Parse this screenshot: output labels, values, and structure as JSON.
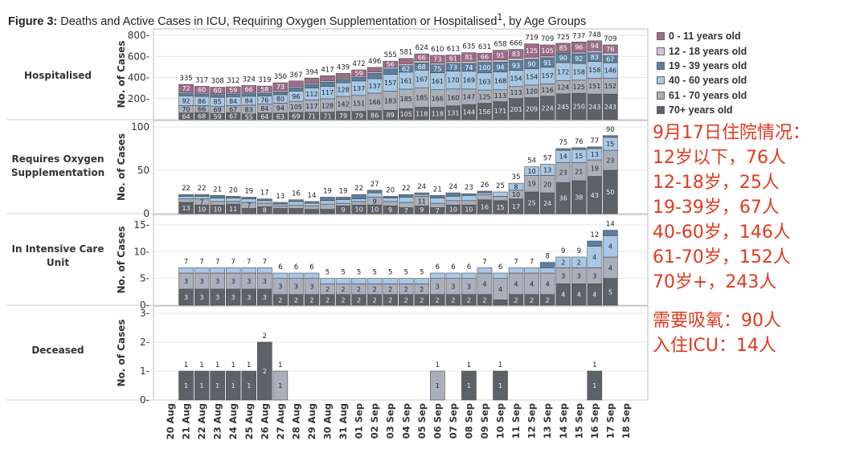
{
  "title_bold": "Figure 3:",
  "title_text": " Deaths and Active Cases in ICU, Requiring Oxygen Supplementation or Hospitalised",
  "title_sup": "1",
  "title_tail": ", by Age Groups",
  "legend": [
    {
      "label": "0 - 11 years old",
      "color": "#9e6b8a"
    },
    {
      "label": "12 - 18 years old",
      "color": "#cfc6da"
    },
    {
      "label": "19 - 39 years old",
      "color": "#5b7da0"
    },
    {
      "label": "40 - 60 years old",
      "color": "#a8c8e6"
    },
    {
      "label": "61 - 70 years old",
      "color": "#a9afbb"
    },
    {
      "label": "70+ years old",
      "color": "#5d6168"
    }
  ],
  "annotations": {
    "block1": [
      "9月17日住院情况：",
      "12岁以下，76人",
      "12-18岁，25人",
      "19-39岁，67人",
      "40-60岁，146人",
      "61-70岁，152人",
      "70岁+，243人"
    ],
    "block2": [
      "需要吸氧：90人",
      "入住ICU：14人"
    ]
  },
  "chart_data": {
    "type": "bar",
    "stacked": true,
    "x_label": "",
    "categories": [
      "20 Aug",
      "21 Aug",
      "22 Aug",
      "23 Aug",
      "24 Aug",
      "25 Aug",
      "26 Aug",
      "27 Aug",
      "28 Aug",
      "29 Aug",
      "30 Aug",
      "31 Aug",
      "01 Sep",
      "02 Sep",
      "03 Sep",
      "04 Sep",
      "05 Sep",
      "06 Sep",
      "07 Sep",
      "08 Sep",
      "09 Sep",
      "10 Sep",
      "11 Sep",
      "12 Sep",
      "13 Sep",
      "14 Sep",
      "15 Sep",
      "16 Sep",
      "17 Sep",
      "18 Sep"
    ],
    "series_names": [
      "70+ years old",
      "61 - 70 years old",
      "40 - 60 years old",
      "19 - 39 years old",
      "12 - 18 years old",
      "0 - 11 years old"
    ],
    "panels": [
      {
        "name": "Hospitalised",
        "ylabel": "No. of Cases",
        "ylim": [
          0,
          800
        ],
        "yticks": [
          200,
          400,
          600,
          800
        ],
        "tick_suffix": "-",
        "totals": [
          null,
          335,
          317,
          308,
          312,
          324,
          319,
          350,
          367,
          394,
          417,
          439,
          472,
          496,
          555,
          581,
          624,
          610,
          613,
          635,
          631,
          658,
          666,
          719,
          709,
          725,
          737,
          748,
          709,
          null
        ],
        "series": [
          {
            "name": "70+ years old",
            "values": [
              null,
              64,
              68,
              59,
              67,
              55,
              64,
              63,
              69,
              71,
              71,
              79,
              79,
              86,
              89,
              105,
              118,
              118,
              131,
              144,
              156,
              171,
              201,
              209,
              224,
              245,
              250,
              243,
              243,
              null
            ]
          },
          {
            "name": "61 - 70 years old",
            "values": [
              null,
              70,
              66,
              69,
              67,
              83,
              84,
              94,
              105,
              117,
              128,
              142,
              151,
              166,
              183,
              185,
              185,
              166,
              160,
              147,
              125,
              113,
              113,
              120,
              116,
              124,
              125,
              151,
              152,
              null
            ]
          },
          {
            "name": "40 - 60 years old",
            "values": [
              null,
              92,
              86,
              85,
              84,
              84,
              76,
              80,
              96,
              112,
              117,
              128,
              137,
              137,
              157,
              161,
              167,
              161,
              170,
              169,
              163,
              168,
              154,
              154,
              157,
              172,
              158,
              158,
              146,
              null
            ]
          },
          {
            "name": "19 - 39 years old",
            "values": [
              null,
              25,
              25,
              25,
              25,
              25,
              25,
              27,
              34,
              34,
              40,
              33,
              33,
              50,
              53,
              62,
              68,
              75,
              73,
              74,
              100,
              94,
              93,
              90,
              91,
              90,
              92,
              83,
              67,
              null
            ]
          },
          {
            "name": "12 - 18 years old",
            "values": [
              null,
              12,
              12,
              10,
              10,
              11,
              12,
              13,
              13,
              12,
              12,
              12,
              13,
              14,
              17,
              18,
              20,
              17,
              18,
              20,
              21,
              21,
              22,
              21,
              16,
              9,
              16,
              19,
              25,
              null
            ]
          },
          {
            "name": "0 - 11 years old",
            "values": [
              null,
              72,
              60,
              60,
              59,
              66,
              58,
              73,
              50,
              48,
              49,
              45,
              59,
              43,
              56,
              50,
              66,
              73,
              61,
              81,
              66,
              91,
              83,
              125,
              105,
              85,
              96,
              94,
              76,
              null
            ]
          }
        ]
      },
      {
        "name": "Requires Oxygen Supplementation",
        "ylabel": "No. of Cases",
        "ylim": [
          0,
          100
        ],
        "yticks": [
          0,
          50,
          100
        ],
        "tick_suffix": "",
        "totals": [
          null,
          22,
          22,
          21,
          20,
          19,
          17,
          13,
          16,
          14,
          19,
          19,
          22,
          27,
          20,
          22,
          24,
          21,
          24,
          23,
          26,
          25,
          35,
          54,
          57,
          75,
          76,
          77,
          90,
          null
        ],
        "series": [
          {
            "name": "70+ years old",
            "values": [
              null,
              13,
              10,
              10,
              11,
              6,
              8,
              6,
              6,
              5,
              5,
              9,
              10,
              10,
              9,
              7,
              9,
              7,
              10,
              10,
              16,
              15,
              17,
              25,
              24,
              36,
              38,
              43,
              50,
              null
            ]
          },
          {
            "name": "61 - 70 years old",
            "values": [
              null,
              4,
              7,
              4,
              3,
              7,
              4,
              3,
              4,
              4,
              6,
              3,
              4,
              9,
              5,
              6,
              11,
              5,
              5,
              5,
              6,
              5,
              10,
              19,
              20,
              23,
              21,
              19,
              23,
              null
            ]
          },
          {
            "name": "40 - 60 years old",
            "values": [
              null,
              3,
              3,
              4,
              4,
              4,
              3,
              2,
              4,
              3,
              4,
              4,
              3,
              5,
              4,
              6,
              2,
              6,
              5,
              6,
              2,
              5,
              8,
              10,
              13,
              14,
              15,
              13,
              15,
              null
            ]
          },
          {
            "name": "19 - 39 years old",
            "values": [
              null,
              2,
              2,
              3,
              2,
              2,
              2,
              2,
              2,
              2,
              4,
              3,
              5,
              3,
              2,
              3,
              2,
              3,
              4,
              2,
              2,
              0,
              0,
              0,
              0,
              2,
              2,
              2,
              2,
              null
            ]
          },
          {
            "name": "12 - 18 years old",
            "values": [
              null,
              0,
              0,
              0,
              0,
              0,
              0,
              0,
              0,
              0,
              0,
              0,
              0,
              0,
              0,
              0,
              0,
              0,
              0,
              0,
              0,
              0,
              0,
              0,
              0,
              0,
              0,
              0,
              0,
              null
            ]
          },
          {
            "name": "0 - 11 years old",
            "values": [
              null,
              0,
              0,
              0,
              0,
              0,
              0,
              0,
              0,
              0,
              0,
              0,
              0,
              0,
              0,
              0,
              0,
              0,
              0,
              0,
              0,
              0,
              0,
              0,
              0,
              0,
              0,
              0,
              0,
              null
            ]
          }
        ]
      },
      {
        "name": "In Intensive Care Unit",
        "ylabel": "No. of Cases",
        "ylim": [
          0,
          15
        ],
        "yticks": [
          0,
          5,
          10,
          15
        ],
        "tick_suffix": "-",
        "totals": [
          null,
          7,
          7,
          7,
          7,
          7,
          7,
          6,
          6,
          6,
          5,
          5,
          5,
          5,
          5,
          5,
          5,
          6,
          6,
          6,
          7,
          6,
          7,
          7,
          8,
          9,
          9,
          12,
          14,
          null
        ],
        "series": [
          {
            "name": "70+ years old",
            "values": [
              null,
              3,
              3,
              3,
              3,
              3,
              3,
              2,
              2,
              2,
              2,
              2,
              2,
              2,
              2,
              2,
              2,
              2,
              2,
              2,
              2,
              1,
              2,
              2,
              2,
              4,
              4,
              4,
              5,
              null
            ]
          },
          {
            "name": "61 - 70 years old",
            "values": [
              null,
              3,
              3,
              3,
              3,
              3,
              3,
              3,
              3,
              3,
              2,
              2,
              2,
              2,
              2,
              2,
              2,
              3,
              3,
              3,
              4,
              4,
              4,
              4,
              4,
              3,
              3,
              3,
              4,
              null
            ]
          },
          {
            "name": "40 - 60 years old",
            "values": [
              null,
              1,
              1,
              1,
              1,
              1,
              1,
              1,
              1,
              1,
              1,
              1,
              1,
              1,
              1,
              1,
              1,
              1,
              1,
              1,
              1,
              1,
              1,
              1,
              1,
              2,
              2,
              4,
              4,
              null
            ]
          },
          {
            "name": "19 - 39 years old",
            "values": [
              null,
              0,
              0,
              0,
              0,
              0,
              0,
              0,
              0,
              0,
              0,
              0,
              0,
              0,
              0,
              0,
              0,
              0,
              0,
              0,
              0,
              0,
              0,
              0,
              1,
              0,
              0,
              1,
              1,
              null
            ]
          },
          {
            "name": "12 - 18 years old",
            "values": [
              null,
              0,
              0,
              0,
              0,
              0,
              0,
              0,
              0,
              0,
              0,
              0,
              0,
              0,
              0,
              0,
              0,
              0,
              0,
              0,
              0,
              0,
              0,
              0,
              0,
              0,
              0,
              0,
              0,
              null
            ]
          },
          {
            "name": "0 - 11 years old",
            "values": [
              null,
              0,
              0,
              0,
              0,
              0,
              0,
              0,
              0,
              0,
              0,
              0,
              0,
              0,
              0,
              0,
              0,
              0,
              0,
              0,
              0,
              0,
              0,
              0,
              0,
              0,
              0,
              0,
              0,
              null
            ]
          }
        ]
      },
      {
        "name": "Deceased",
        "ylabel": "No. of Cases",
        "ylim": [
          0,
          3
        ],
        "yticks": [
          0,
          1,
          2,
          3
        ],
        "tick_suffix": "-",
        "totals": [
          null,
          1,
          1,
          1,
          1,
          1,
          2,
          1,
          null,
          null,
          null,
          null,
          null,
          null,
          null,
          null,
          null,
          1,
          null,
          1,
          null,
          1,
          null,
          null,
          null,
          null,
          null,
          1,
          null,
          null
        ],
        "series": [
          {
            "name": "70+ years old",
            "values": [
              null,
              1,
              1,
              1,
              1,
              1,
              2,
              0,
              0,
              0,
              0,
              0,
              0,
              0,
              0,
              0,
              0,
              0,
              0,
              1,
              0,
              1,
              0,
              0,
              0,
              0,
              0,
              1,
              0,
              null
            ]
          },
          {
            "name": "61 - 70 years old",
            "values": [
              null,
              0,
              0,
              0,
              0,
              0,
              0,
              1,
              0,
              0,
              0,
              0,
              0,
              0,
              0,
              0,
              0,
              1,
              0,
              0,
              0,
              0,
              0,
              0,
              0,
              0,
              0,
              0,
              0,
              null
            ]
          },
          {
            "name": "40 - 60 years old",
            "values": [
              null,
              0,
              0,
              0,
              0,
              0,
              0,
              0,
              0,
              0,
              0,
              0,
              0,
              0,
              0,
              0,
              0,
              0,
              0,
              0,
              0,
              0,
              0,
              0,
              0,
              0,
              0,
              0,
              0,
              null
            ]
          },
          {
            "name": "19 - 39 years old",
            "values": [
              null,
              0,
              0,
              0,
              0,
              0,
              0,
              0,
              0,
              0,
              0,
              0,
              0,
              0,
              0,
              0,
              0,
              0,
              0,
              0,
              0,
              0,
              0,
              0,
              0,
              0,
              0,
              0,
              0,
              null
            ]
          },
          {
            "name": "12 - 18 years old",
            "values": [
              null,
              0,
              0,
              0,
              0,
              0,
              0,
              0,
              0,
              0,
              0,
              0,
              0,
              0,
              0,
              0,
              0,
              0,
              0,
              0,
              0,
              0,
              0,
              0,
              0,
              0,
              0,
              0,
              0,
              null
            ]
          },
          {
            "name": "0 - 11 years old",
            "values": [
              null,
              0,
              0,
              0,
              0,
              0,
              0,
              0,
              0,
              0,
              0,
              0,
              0,
              0,
              0,
              0,
              0,
              0,
              0,
              0,
              0,
              0,
              0,
              0,
              0,
              0,
              0,
              0,
              0,
              null
            ]
          }
        ]
      }
    ]
  }
}
